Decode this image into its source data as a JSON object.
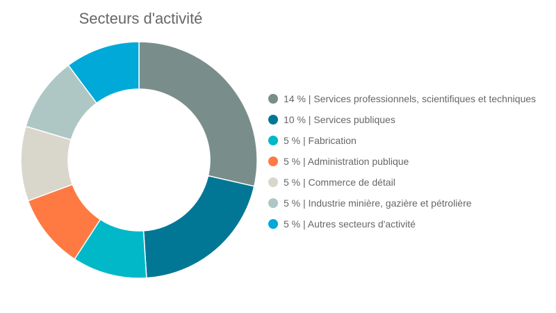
{
  "chart_data": {
    "type": "pie",
    "title": "Secteurs d'activité",
    "legend_position": "right",
    "slices": [
      {
        "label": "14 % | Services professionnels, scientifiques et techniques",
        "value": 14,
        "color": "#798e8b"
      },
      {
        "label": "10 % | Services publiques",
        "value": 10,
        "color": "#027795"
      },
      {
        "label": "5 % | Fabrication",
        "value": 5,
        "color": "#00b8c8"
      },
      {
        "label": "5 % | Administration publique",
        "value": 5,
        "color": "#ff7942"
      },
      {
        "label": "5 % | Commerce de détail",
        "value": 5,
        "color": "#d9d7cb"
      },
      {
        "label": "5 % | Industrie minière, gazière et pétrolière",
        "value": 5,
        "color": "#aec7c5"
      },
      {
        "label": "5 % | Autres secteurs d'activité",
        "value": 5,
        "color": "#00a9d8"
      }
    ]
  }
}
